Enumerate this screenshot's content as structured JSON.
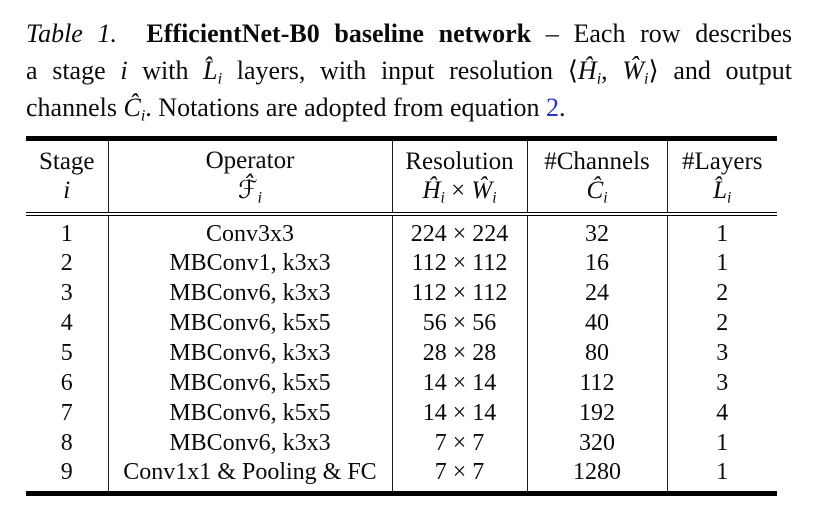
{
  "colors": {
    "ink": "#0b0b0b",
    "link": "#2333c4",
    "rule": "#000000",
    "vline": "#1f1f1f"
  },
  "caption": {
    "lines": [
      [
        [
          "i",
          "Table 1."
        ],
        [
          "r",
          "  "
        ],
        [
          "b",
          "EfficientNet-B0 baseline network"
        ],
        [
          "r",
          " – Each row describes"
        ]
      ],
      [
        [
          "r",
          "a stage "
        ],
        [
          "i",
          "i"
        ],
        [
          "r",
          " with "
        ],
        [
          "i",
          "L̂"
        ],
        [
          "s",
          "i"
        ],
        [
          "r",
          " layers, with input resolution "
        ],
        [
          "r",
          "⟨"
        ],
        [
          "i",
          "Ĥ"
        ],
        [
          "s",
          "i"
        ],
        [
          "r",
          ", "
        ],
        [
          "i",
          "Ŵ"
        ],
        [
          "s",
          "i"
        ],
        [
          "r",
          "⟩ and output"
        ]
      ],
      [
        [
          "r",
          "channels "
        ],
        [
          "i",
          "Ĉ"
        ],
        [
          "s",
          "i"
        ],
        [
          "r",
          ". Notations are adopted from equation "
        ],
        [
          "l",
          "2"
        ],
        [
          "r",
          "."
        ]
      ]
    ]
  },
  "table": {
    "col_keys": [
      "stage",
      "operator",
      "resolution",
      "channels",
      "layers"
    ],
    "columns": [
      {
        "title": "Stage",
        "math": [
          [
            "i",
            "i"
          ]
        ]
      },
      {
        "title": "Operator",
        "math": [
          [
            "f",
            "ℱ̂"
          ],
          [
            "s",
            "i"
          ]
        ]
      },
      {
        "title": "Resolution",
        "math": [
          [
            "i",
            "Ĥ"
          ],
          [
            "s",
            "i"
          ],
          [
            "r",
            " × "
          ],
          [
            "i",
            "Ŵ"
          ],
          [
            "s",
            "i"
          ]
        ]
      },
      {
        "title": "#Channels",
        "math": [
          [
            "i",
            "Ĉ"
          ],
          [
            "s",
            "i"
          ]
        ]
      },
      {
        "title": "#Layers",
        "math": [
          [
            "i",
            "L̂"
          ],
          [
            "s",
            "i"
          ]
        ]
      }
    ],
    "rows": [
      [
        "1",
        "Conv3x3",
        "224 × 224",
        "32",
        "1"
      ],
      [
        "2",
        "MBConv1, k3x3",
        "112 × 112",
        "16",
        "1"
      ],
      [
        "3",
        "MBConv6, k3x3",
        "112 × 112",
        "24",
        "2"
      ],
      [
        "4",
        "MBConv6, k5x5",
        "56 × 56",
        "40",
        "2"
      ],
      [
        "5",
        "MBConv6, k3x3",
        "28 × 28",
        "80",
        "3"
      ],
      [
        "6",
        "MBConv6, k5x5",
        "14 × 14",
        "112",
        "3"
      ],
      [
        "7",
        "MBConv6, k5x5",
        "14 × 14",
        "192",
        "4"
      ],
      [
        "8",
        "MBConv6, k3x3",
        "7 × 7",
        "320",
        "1"
      ],
      [
        "9",
        "Conv1x1 & Pooling & FC",
        "7 × 7",
        "1280",
        "1"
      ]
    ]
  }
}
